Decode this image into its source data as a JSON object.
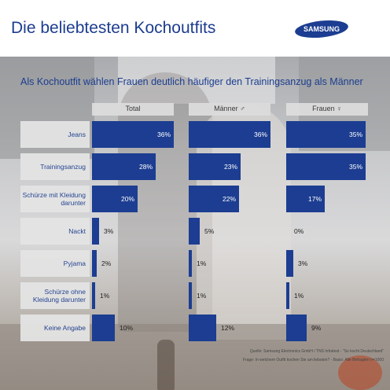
{
  "header": {
    "title": "Die beliebtesten Kochoutfits",
    "logo_text": "SAMSUNG"
  },
  "colors": {
    "brand_blue": "#1c3d91",
    "title_blue": "#1c3d8f",
    "label_bg": "#e4e4e4"
  },
  "chart_data": {
    "type": "bar",
    "orientation": "horizontal",
    "title": "Als Kochoutfit wählen Frauen deutlich häufiger den Trainingsanzug als Männer",
    "categories": [
      "Jeans",
      "Trainingsanzug",
      "Schürze mit Kleidung darunter",
      "Nackt",
      "Pyjama",
      "Schürze ohne Kleidung darunter",
      "Keine Angabe"
    ],
    "series": [
      {
        "name": "Total",
        "values": [
          36,
          28,
          20,
          3,
          2,
          1,
          10
        ]
      },
      {
        "name": "Männer ♂",
        "values": [
          36,
          23,
          22,
          5,
          1,
          1,
          12
        ]
      },
      {
        "name": "Frauen ♀",
        "values": [
          35,
          35,
          17,
          0,
          3,
          1,
          9
        ]
      }
    ],
    "value_suffix": "%",
    "xlim": [
      0,
      36
    ],
    "grid": false,
    "legend": "column headers"
  },
  "footer": {
    "source": "Quelle: Samsung Electronics GmbH / TNS Infratest - \"So kocht Deutschland\"",
    "question": "Frage: In welchem Outfit kochen Sie am liebsten? - Basis: Alle Befragten n=1000"
  }
}
